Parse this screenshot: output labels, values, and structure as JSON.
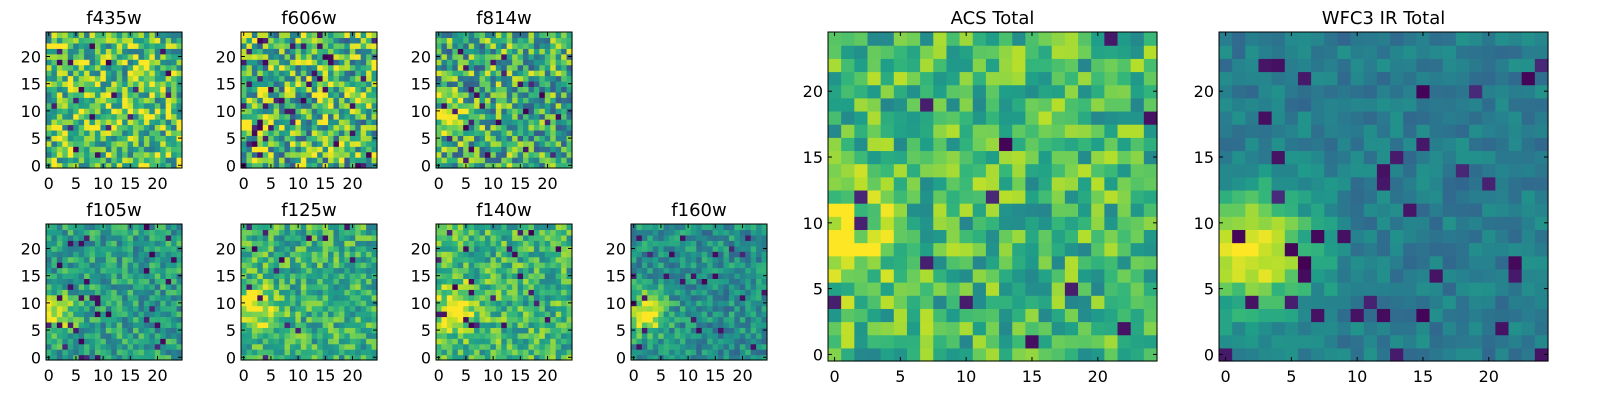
{
  "figure": {
    "colormap": "viridis",
    "colormap_stops": [
      "#440154",
      "#482878",
      "#3e4989",
      "#31688e",
      "#26828e",
      "#1f9e89",
      "#35b779",
      "#6ece58",
      "#b5de2b",
      "#fde725"
    ]
  },
  "chart_data": [
    {
      "type": "heatmap",
      "title": "f435w",
      "grid_size": 25,
      "xlim": [
        -0.5,
        24.5
      ],
      "ylim": [
        -0.5,
        24.5
      ],
      "x_ticks": [
        0,
        5,
        10,
        15,
        20
      ],
      "y_ticks": [
        0,
        5,
        10,
        15,
        20
      ],
      "normalized_intensity": {
        "background_level": 0.72,
        "pixel_noise": 0.34,
        "source_center": [
          10,
          9
        ],
        "source_peak": 0.1,
        "source_sigma": 3.0,
        "faint_pixel_fraction": 0.03
      }
    },
    {
      "type": "heatmap",
      "title": "f606w",
      "grid_size": 25,
      "xlim": [
        -0.5,
        24.5
      ],
      "ylim": [
        -0.5,
        24.5
      ],
      "x_ticks": [
        0,
        5,
        10,
        15,
        20
      ],
      "y_ticks": [
        0,
        5,
        10,
        15,
        20
      ],
      "normalized_intensity": {
        "background_level": 0.66,
        "pixel_noise": 0.38,
        "source_center": [
          2,
          8
        ],
        "source_peak": 0.22,
        "source_sigma": 2.5,
        "faint_pixel_fraction": 0.04
      }
    },
    {
      "type": "heatmap",
      "title": "f814w",
      "grid_size": 25,
      "xlim": [
        -0.5,
        24.5
      ],
      "ylim": [
        -0.5,
        24.5
      ],
      "x_ticks": [
        0,
        5,
        10,
        15,
        20
      ],
      "y_ticks": [
        0,
        5,
        10,
        15,
        20
      ],
      "normalized_intensity": {
        "background_level": 0.62,
        "pixel_noise": 0.34,
        "source_center": [
          2,
          9
        ],
        "source_peak": 0.35,
        "source_sigma": 2.3,
        "faint_pixel_fraction": 0.04
      }
    },
    {
      "type": "heatmap",
      "title": "f105w",
      "grid_size": 25,
      "xlim": [
        -0.5,
        24.5
      ],
      "ylim": [
        -0.5,
        24.5
      ],
      "x_ticks": [
        0,
        5,
        10,
        15,
        20
      ],
      "y_ticks": [
        0,
        5,
        10,
        15,
        20
      ],
      "normalized_intensity": {
        "background_level": 0.56,
        "pixel_noise": 0.2,
        "source_center": [
          1,
          8
        ],
        "source_peak": 0.42,
        "source_sigma": 2.6,
        "faint_pixel_fraction": 0.05
      }
    },
    {
      "type": "heatmap",
      "title": "f125w",
      "grid_size": 25,
      "xlim": [
        -0.5,
        24.5
      ],
      "ylim": [
        -0.5,
        24.5
      ],
      "x_ticks": [
        0,
        5,
        10,
        15,
        20
      ],
      "y_ticks": [
        0,
        5,
        10,
        15,
        20
      ],
      "normalized_intensity": {
        "background_level": 0.64,
        "pixel_noise": 0.22,
        "source_center": [
          2,
          9
        ],
        "source_peak": 0.34,
        "source_sigma": 3.0,
        "faint_pixel_fraction": 0.03
      }
    },
    {
      "type": "heatmap",
      "title": "f140w",
      "grid_size": 25,
      "xlim": [
        -0.5,
        24.5
      ],
      "ylim": [
        -0.5,
        24.5
      ],
      "x_ticks": [
        0,
        5,
        10,
        15,
        20
      ],
      "y_ticks": [
        0,
        5,
        10,
        15,
        20
      ],
      "normalized_intensity": {
        "background_level": 0.66,
        "pixel_noise": 0.22,
        "source_center": [
          3,
          9
        ],
        "source_peak": 0.3,
        "source_sigma": 3.4,
        "faint_pixel_fraction": 0.03
      }
    },
    {
      "type": "heatmap",
      "title": "f160w",
      "grid_size": 25,
      "xlim": [
        -0.5,
        24.5
      ],
      "ylim": [
        -0.5,
        24.5
      ],
      "x_ticks": [
        0,
        5,
        10,
        15,
        20
      ],
      "y_ticks": [
        0,
        5,
        10,
        15,
        20
      ],
      "normalized_intensity": {
        "background_level": 0.5,
        "pixel_noise": 0.18,
        "source_center": [
          2,
          8
        ],
        "source_peak": 0.5,
        "source_sigma": 2.8,
        "faint_pixel_fraction": 0.04
      }
    },
    {
      "type": "heatmap",
      "title": "ACS Total",
      "grid_size": 25,
      "xlim": [
        -0.5,
        24.5
      ],
      "ylim": [
        -0.5,
        24.5
      ],
      "x_ticks": [
        0,
        5,
        10,
        15,
        20
      ],
      "y_ticks": [
        0,
        5,
        10,
        15,
        20
      ],
      "normalized_intensity": {
        "background_level": 0.68,
        "pixel_noise": 0.22,
        "source_center": [
          1,
          9
        ],
        "source_peak": 0.3,
        "source_sigma": 2.6,
        "faint_pixel_fraction": 0.03
      }
    },
    {
      "type": "heatmap",
      "title": "WFC3 IR Total",
      "grid_size": 25,
      "xlim": [
        -0.5,
        24.5
      ],
      "ylim": [
        -0.5,
        24.5
      ],
      "x_ticks": [
        0,
        5,
        10,
        15,
        20
      ],
      "y_ticks": [
        0,
        5,
        10,
        15,
        20
      ],
      "normalized_intensity": {
        "background_level": 0.42,
        "pixel_noise": 0.09,
        "source_center": [
          2,
          8
        ],
        "source_peak": 0.58,
        "source_sigma": 3.2,
        "faint_pixel_fraction": 0.04
      }
    }
  ]
}
